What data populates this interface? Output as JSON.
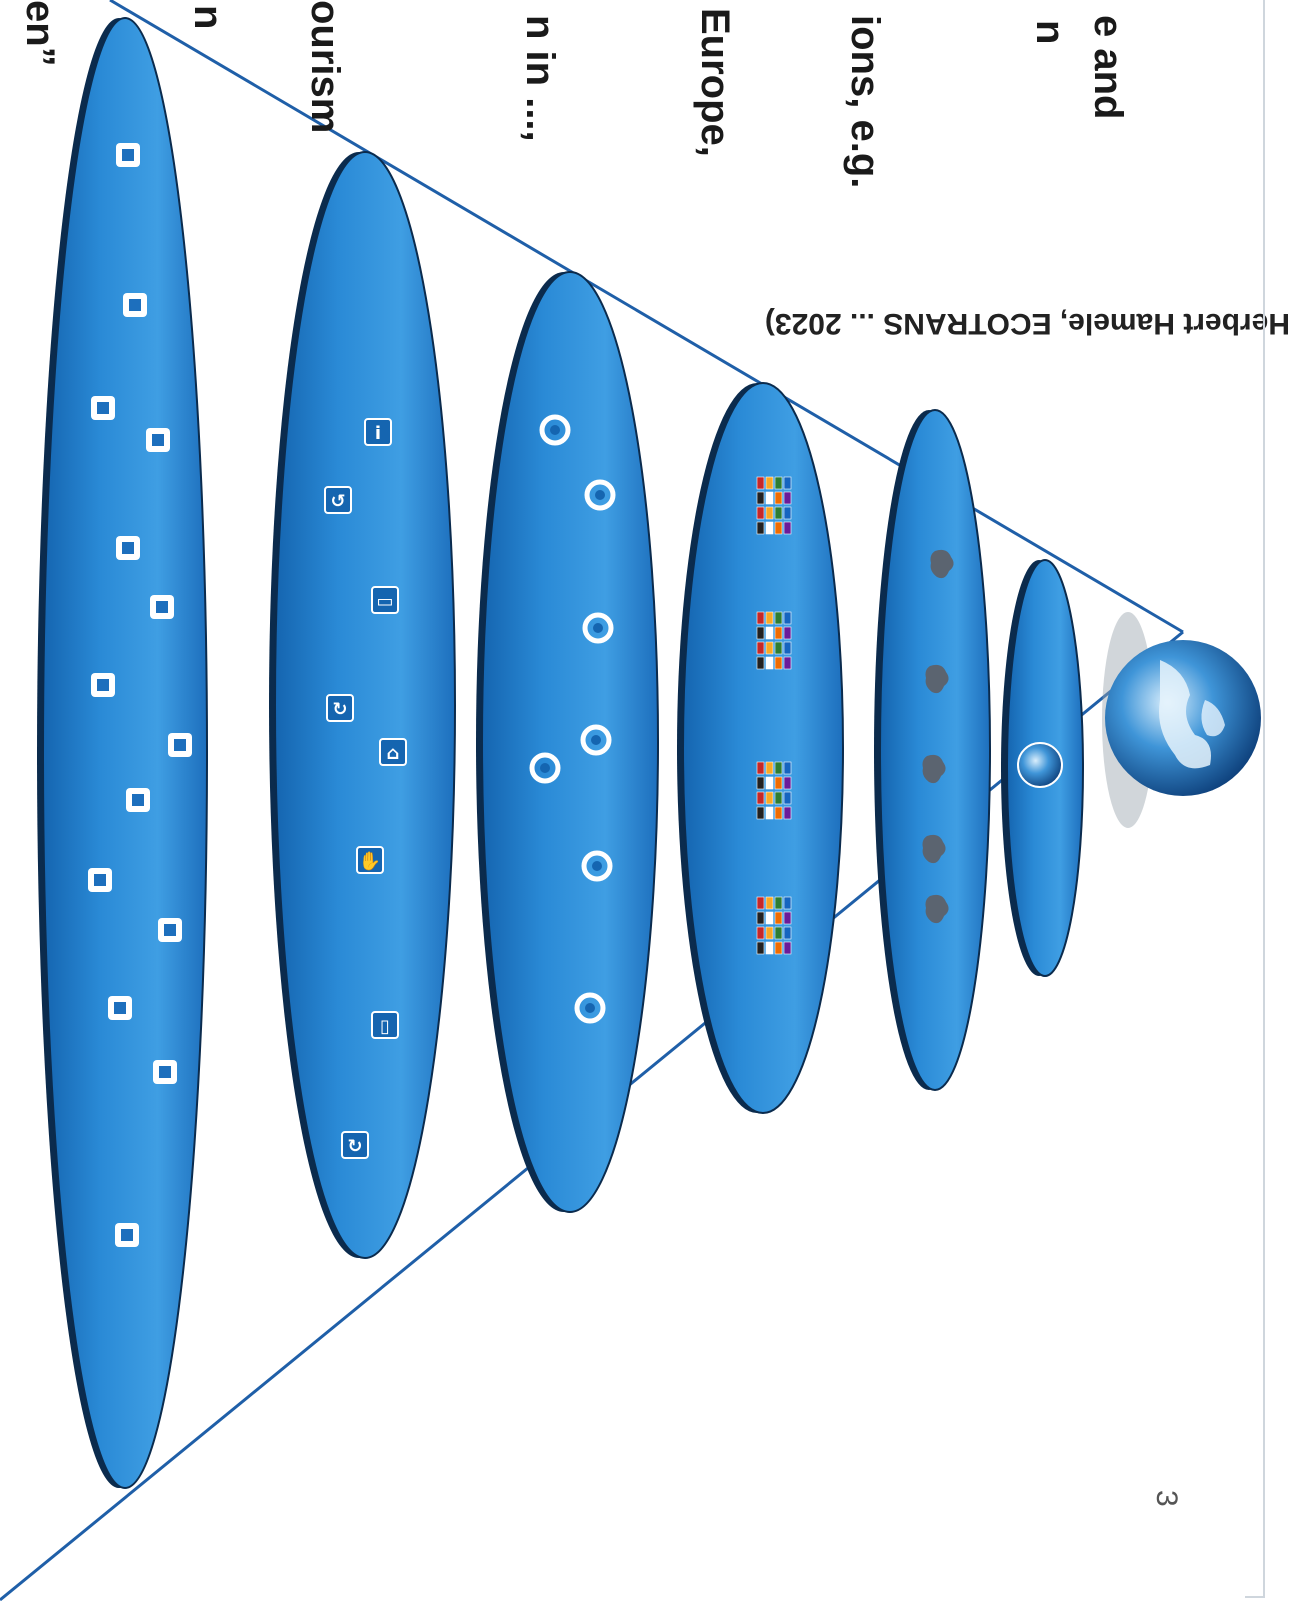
{
  "text_fragments": [
    {
      "id": "frag-1",
      "text": "e and"
    },
    {
      "id": "frag-2",
      "text": "n"
    },
    {
      "id": "frag-3",
      "text": "ions, e.g."
    },
    {
      "id": "frag-4",
      "text": "Europe,"
    },
    {
      "id": "frag-5",
      "text": "n in ...,"
    },
    {
      "id": "frag-6",
      "text": "ourism"
    },
    {
      "id": "frag-7",
      "text": "n"
    },
    {
      "id": "frag-8",
      "text": "en”"
    }
  ],
  "footer_text": "(Herbert Hamele, ECOTRANS ... 2023)",
  "page_number": "3",
  "colors": {
    "disc": "#2a8ad6",
    "disc_dark": "#1565b0",
    "disc_light": "#5fb2ef",
    "line": "#1f5fa8",
    "text": "#1a1a1a"
  },
  "levels": [
    {
      "name": "globe",
      "icons": []
    },
    {
      "name": "world",
      "icons": [
        "globe-icon"
      ]
    },
    {
      "name": "continents",
      "icons": [
        "continent-icon",
        "continent-icon",
        "continent-icon",
        "continent-icon",
        "continent-icon"
      ]
    },
    {
      "name": "countries",
      "icons": [
        "flag-group-icon",
        "flag-group-icon",
        "flag-group-icon",
        "flag-group-icon"
      ]
    },
    {
      "name": "regions",
      "icons": [
        "ring-icon",
        "ring-icon",
        "ring-icon",
        "ring-icon",
        "ring-icon",
        "ring-icon",
        "ring-icon"
      ]
    },
    {
      "name": "destinations",
      "icons": [
        "info-icon",
        "arrow-icon",
        "car-icon",
        "cycle-icon",
        "home-icon",
        "hand-icon",
        "door-icon",
        "cycle-icon"
      ]
    },
    {
      "name": "businesses",
      "icons": [
        "building-icon",
        "building-icon",
        "building-icon",
        "building-icon",
        "building-icon",
        "building-icon",
        "building-icon",
        "building-icon",
        "building-icon",
        "building-icon",
        "building-icon",
        "building-icon",
        "building-icon",
        "building-icon"
      ]
    }
  ]
}
